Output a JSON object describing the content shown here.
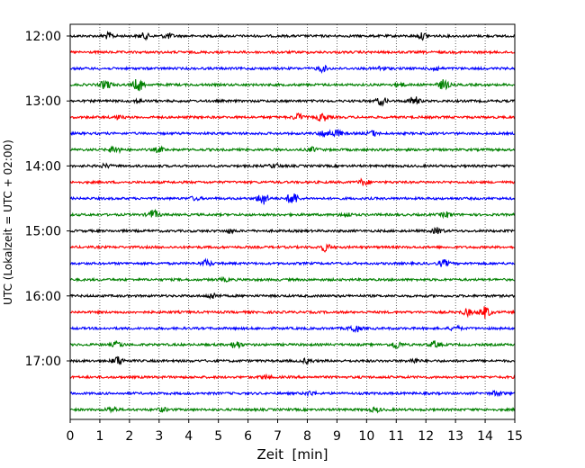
{
  "chart_data": {
    "type": "line",
    "title": "",
    "xlabel": "Zeit  [min]",
    "ylabel": "UTC (Lokalzeit = UTC + 02:00)",
    "xlim": [
      0,
      15
    ],
    "x_ticks": [
      "0",
      "1",
      "2",
      "3",
      "4",
      "5",
      "6",
      "7",
      "8",
      "9",
      "10",
      "11",
      "12",
      "13",
      "14",
      "15"
    ],
    "y_tick_labels": [
      "12:00",
      "13:00",
      "14:00",
      "15:00",
      "16:00",
      "17:00"
    ],
    "trace_interval_min": 15,
    "trace_colors": [
      "#000000",
      "#ff0000",
      "#0000ff",
      "#008000"
    ],
    "grid_x": true,
    "grid_style": "dotted",
    "series": [
      {
        "start": "12:00",
        "color": "#000000",
        "events": [
          [
            1.3,
            1.3
          ],
          [
            2.5,
            1.2
          ],
          [
            3.3,
            1.1
          ],
          [
            11.9,
            1.3
          ]
        ]
      },
      {
        "start": "12:15",
        "color": "#ff0000",
        "events": []
      },
      {
        "start": "12:30",
        "color": "#0000ff",
        "events": [
          [
            8.5,
            1.3
          ],
          [
            10.5,
            0.9
          ],
          [
            12.3,
            1.0
          ]
        ]
      },
      {
        "start": "12:45",
        "color": "#008000",
        "events": [
          [
            1.2,
            2.0
          ],
          [
            2.3,
            2.8
          ],
          [
            12.6,
            2.2
          ],
          [
            11.1,
            1.0
          ]
        ]
      },
      {
        "start": "13:00",
        "color": "#000000",
        "events": [
          [
            10.5,
            1.7
          ],
          [
            11.6,
            2.0
          ],
          [
            2.3,
            0.8
          ]
        ]
      },
      {
        "start": "13:15",
        "color": "#ff0000",
        "events": [
          [
            7.7,
            1.5
          ],
          [
            8.5,
            1.8
          ],
          [
            1.6,
            0.7
          ]
        ]
      },
      {
        "start": "13:30",
        "color": "#0000ff",
        "events": [
          [
            8.6,
            1.6
          ],
          [
            9.0,
            1.4
          ],
          [
            10.2,
            1.1
          ]
        ]
      },
      {
        "start": "13:45",
        "color": "#008000",
        "events": [
          [
            1.5,
            1.7
          ],
          [
            3.0,
            1.0
          ],
          [
            8.2,
            0.9
          ]
        ]
      },
      {
        "start": "14:00",
        "color": "#000000",
        "events": [
          [
            6.9,
            0.9
          ],
          [
            1.2,
            0.7
          ]
        ]
      },
      {
        "start": "14:15",
        "color": "#ff0000",
        "events": [
          [
            9.9,
            1.4
          ]
        ]
      },
      {
        "start": "14:30",
        "color": "#0000ff",
        "events": [
          [
            6.5,
            2.8
          ],
          [
            7.5,
            3.0
          ],
          [
            4.2,
            0.7
          ]
        ]
      },
      {
        "start": "14:45",
        "color": "#008000",
        "events": [
          [
            2.8,
            2.0
          ],
          [
            9.3,
            1.0
          ],
          [
            12.7,
            1.1
          ]
        ]
      },
      {
        "start": "15:00",
        "color": "#000000",
        "events": [
          [
            12.4,
            1.3
          ],
          [
            5.4,
            0.7
          ]
        ]
      },
      {
        "start": "15:15",
        "color": "#ff0000",
        "events": [
          [
            8.6,
            1.7
          ]
        ]
      },
      {
        "start": "15:30",
        "color": "#0000ff",
        "events": [
          [
            4.6,
            1.4
          ],
          [
            12.6,
            1.4
          ]
        ]
      },
      {
        "start": "15:45",
        "color": "#008000",
        "events": [
          [
            5.2,
            0.6
          ]
        ]
      },
      {
        "start": "16:00",
        "color": "#000000",
        "events": [
          [
            4.8,
            1.2
          ]
        ]
      },
      {
        "start": "16:15",
        "color": "#ff0000",
        "events": [
          [
            14.0,
            2.6
          ],
          [
            13.4,
            1.4
          ]
        ]
      },
      {
        "start": "16:30",
        "color": "#0000ff",
        "events": [
          [
            9.6,
            1.8
          ],
          [
            13.0,
            0.9
          ]
        ]
      },
      {
        "start": "16:45",
        "color": "#008000",
        "events": [
          [
            1.6,
            1.2
          ],
          [
            5.6,
            1.7
          ],
          [
            11.0,
            1.7
          ],
          [
            12.3,
            1.4
          ]
        ]
      },
      {
        "start": "17:00",
        "color": "#000000",
        "events": [
          [
            1.6,
            2.0
          ],
          [
            8.0,
            1.0
          ],
          [
            11.6,
            0.9
          ]
        ]
      },
      {
        "start": "17:15",
        "color": "#ff0000",
        "events": [
          [
            6.6,
            0.8
          ]
        ]
      },
      {
        "start": "17:30",
        "color": "#0000ff",
        "events": [
          [
            8.1,
            0.9
          ],
          [
            14.4,
            1.1
          ]
        ]
      },
      {
        "start": "17:45",
        "color": "#008000",
        "events": [
          [
            1.4,
            1.2
          ],
          [
            3.1,
            0.8
          ],
          [
            10.3,
            0.9
          ]
        ]
      }
    ]
  }
}
